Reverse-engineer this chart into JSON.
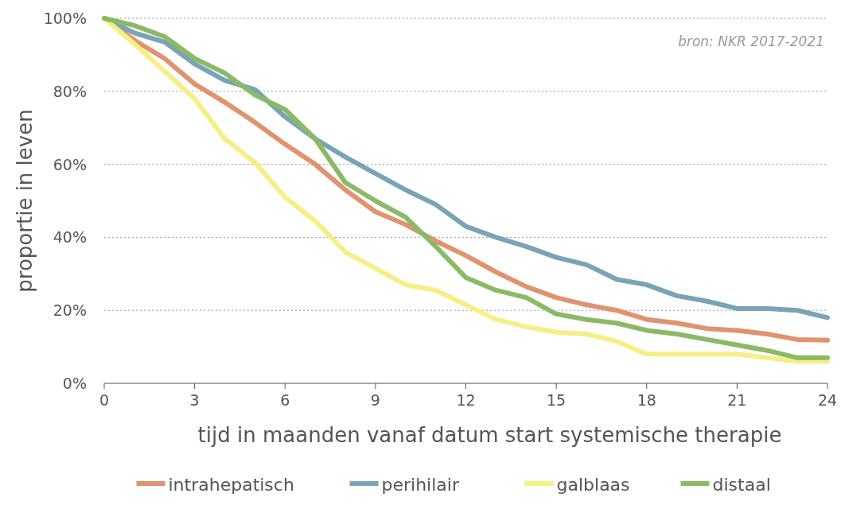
{
  "chart_data": {
    "type": "line",
    "xlabel": "tijd in maanden vanaf datum start systemische therapie",
    "ylabel": "proportie in leven",
    "annotations": [
      "bron: NKR 2017-2021"
    ],
    "x": [
      0,
      1,
      2,
      3,
      4,
      5,
      6,
      7,
      8,
      9,
      10,
      11,
      12,
      13,
      14,
      15,
      16,
      17,
      18,
      19,
      20,
      21,
      22,
      23,
      24
    ],
    "xlim": [
      0,
      24
    ],
    "xticks": [
      0,
      3,
      6,
      9,
      12,
      15,
      18,
      21,
      24
    ],
    "ylim": [
      0,
      100
    ],
    "yticks": [
      {
        "value": 0,
        "label": "0%"
      },
      {
        "value": 20,
        "label": "20%"
      },
      {
        "value": 40,
        "label": "40%"
      },
      {
        "value": 60,
        "label": "60%"
      },
      {
        "value": 80,
        "label": "80%"
      },
      {
        "value": 100,
        "label": "100%"
      }
    ],
    "grid": "y",
    "legend": "bottom",
    "marker": "none",
    "line_style": "solid",
    "series": [
      {
        "name": "intrahepatisch",
        "color": "#e0936e",
        "values": [
          100,
          94,
          89,
          82,
          77,
          71.5,
          65.5,
          60,
          53,
          47,
          43.5,
          39,
          35,
          30.5,
          26.5,
          23.5,
          21.5,
          20,
          17.5,
          16.5,
          15,
          14.5,
          13.5,
          12,
          11.8
        ]
      },
      {
        "name": "perihilair",
        "color": "#79a3b6",
        "values": [
          100,
          96,
          93.5,
          87.5,
          83,
          80.5,
          73,
          67,
          62,
          57.5,
          53,
          49,
          43,
          40,
          37.5,
          34.5,
          32.5,
          28.5,
          27,
          24,
          22.5,
          20.5,
          20.5,
          20,
          18
        ]
      },
      {
        "name": "galblaas",
        "color": "#f5ef86",
        "values": [
          100,
          93,
          85.5,
          78,
          67,
          60.5,
          51,
          44.5,
          36,
          31.5,
          27,
          25.5,
          21.5,
          17.5,
          15.5,
          14,
          13.5,
          11.5,
          8,
          8,
          8,
          8,
          7,
          6,
          6
        ]
      },
      {
        "name": "distaal",
        "color": "#8bba67",
        "values": [
          100,
          98,
          95,
          89,
          85,
          79,
          75,
          67,
          55,
          50,
          45.5,
          37.5,
          29,
          25.5,
          23.5,
          19,
          17.5,
          16.5,
          14.5,
          13.5,
          12,
          10.5,
          9,
          7,
          7
        ]
      }
    ]
  }
}
